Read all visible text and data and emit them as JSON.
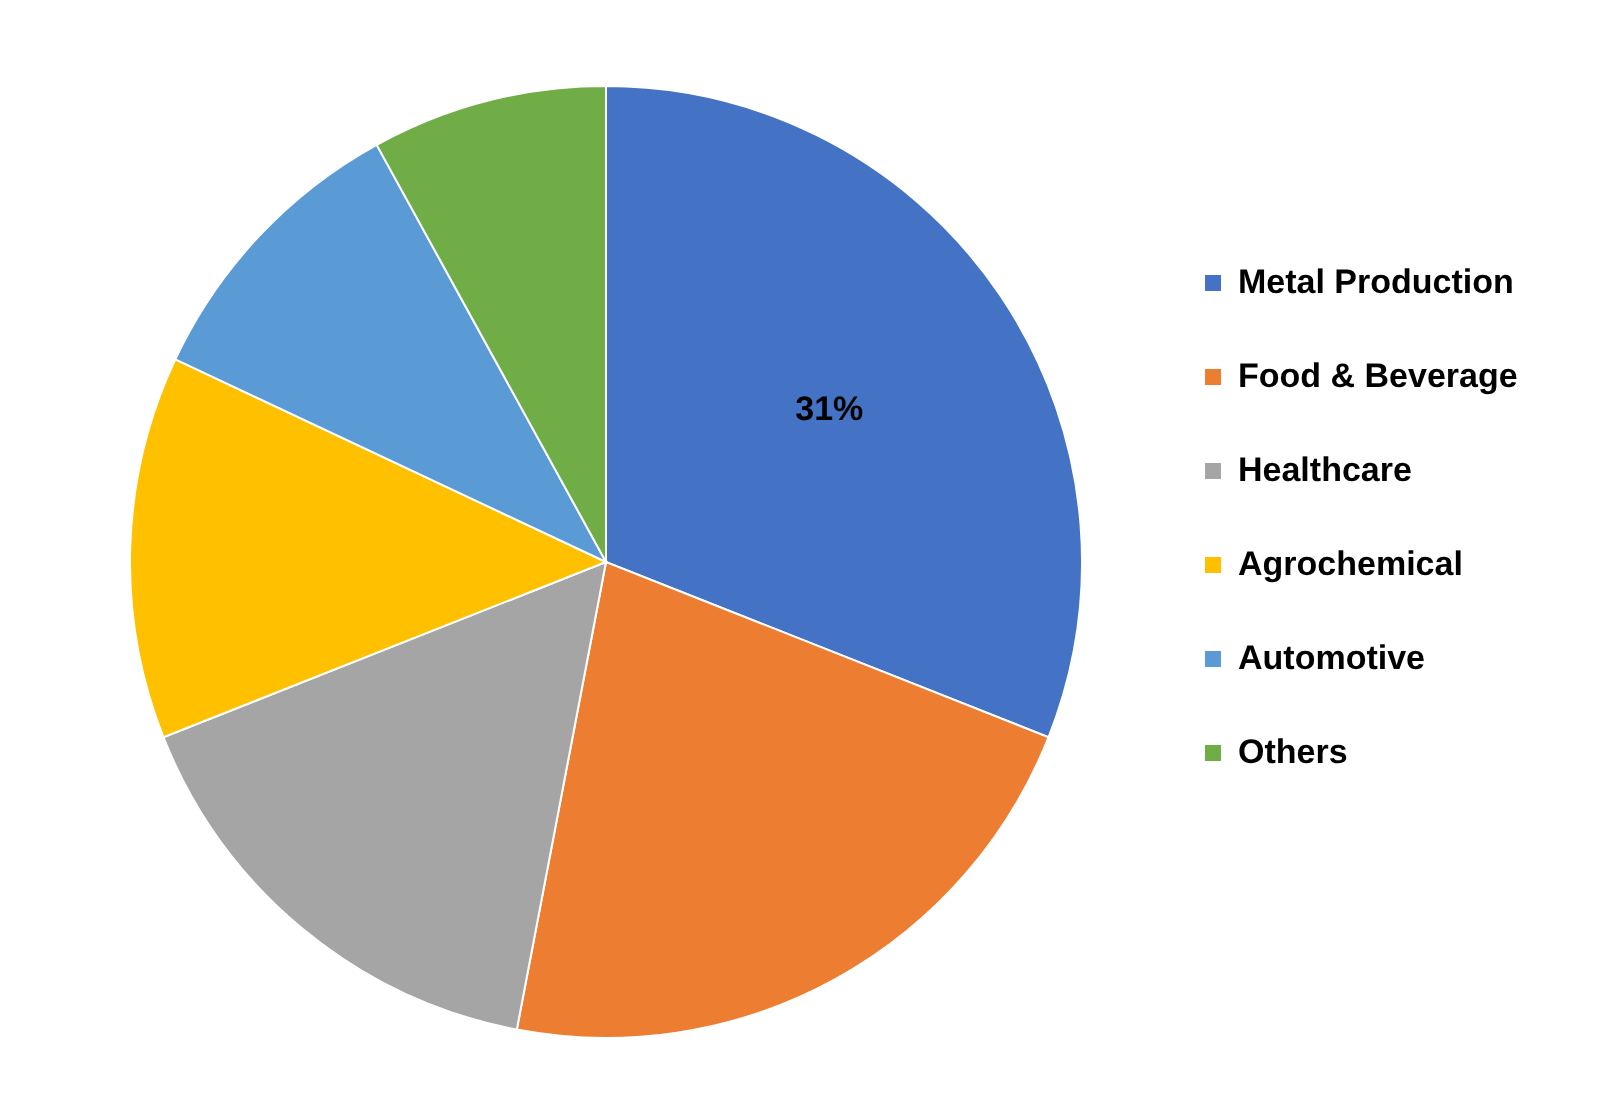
{
  "chart_data": {
    "type": "pie",
    "categories": [
      "Metal Production",
      "Food & Beverage",
      "Healthcare",
      "Agrochemical",
      "Automotive",
      "Others"
    ],
    "values": [
      31,
      22,
      16,
      13,
      10,
      8
    ],
    "colors": [
      "#4472c4",
      "#ed7d31",
      "#a5a5a5",
      "#ffc000",
      "#5b9bd5",
      "#70ad47"
    ],
    "value_labels": [
      "31%",
      null,
      null,
      null,
      null,
      null
    ],
    "legend": "right"
  }
}
